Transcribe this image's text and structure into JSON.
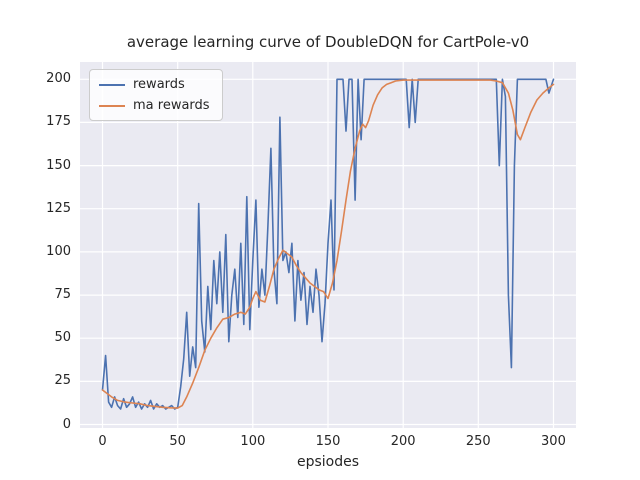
{
  "chart_data": {
    "type": "line",
    "title": "average learning curve of DoubleDQN for CartPole-v0",
    "xlabel": "epsiodes",
    "ylabel": "",
    "xlim": [
      -15,
      315
    ],
    "ylim": [
      -2,
      210
    ],
    "xticks": [
      0,
      50,
      100,
      150,
      200,
      250,
      300
    ],
    "yticks": [
      0,
      25,
      50,
      75,
      100,
      125,
      150,
      175,
      200
    ],
    "grid": true,
    "legend_position": "upper-left",
    "colors": {
      "plot_background": "#eaeaf2",
      "grid": "#ffffff",
      "text": "#262626",
      "rewards_line": "#4c72b0",
      "ma_rewards_line": "#dd8452"
    },
    "series": [
      {
        "name": "rewards",
        "color": "#4c72b0",
        "points": [
          [
            0,
            20
          ],
          [
            2,
            40
          ],
          [
            4,
            13
          ],
          [
            6,
            10
          ],
          [
            8,
            16
          ],
          [
            10,
            11
          ],
          [
            12,
            9
          ],
          [
            14,
            15
          ],
          [
            16,
            10
          ],
          [
            18,
            12
          ],
          [
            20,
            16
          ],
          [
            22,
            10
          ],
          [
            24,
            13
          ],
          [
            26,
            9
          ],
          [
            28,
            12
          ],
          [
            30,
            10
          ],
          [
            32,
            14
          ],
          [
            34,
            9
          ],
          [
            36,
            12
          ],
          [
            38,
            10
          ],
          [
            40,
            11
          ],
          [
            42,
            9
          ],
          [
            44,
            10
          ],
          [
            46,
            11
          ],
          [
            48,
            9
          ],
          [
            50,
            10
          ],
          [
            52,
            22
          ],
          [
            54,
            38
          ],
          [
            56,
            65
          ],
          [
            58,
            28
          ],
          [
            60,
            45
          ],
          [
            62,
            33
          ],
          [
            64,
            128
          ],
          [
            66,
            60
          ],
          [
            68,
            42
          ],
          [
            70,
            80
          ],
          [
            72,
            55
          ],
          [
            74,
            95
          ],
          [
            76,
            70
          ],
          [
            78,
            100
          ],
          [
            80,
            65
          ],
          [
            82,
            110
          ],
          [
            84,
            48
          ],
          [
            86,
            75
          ],
          [
            88,
            90
          ],
          [
            90,
            62
          ],
          [
            92,
            105
          ],
          [
            94,
            58
          ],
          [
            96,
            132
          ],
          [
            98,
            55
          ],
          [
            100,
            95
          ],
          [
            102,
            130
          ],
          [
            104,
            68
          ],
          [
            106,
            90
          ],
          [
            108,
            75
          ],
          [
            110,
            115
          ],
          [
            112,
            160
          ],
          [
            114,
            90
          ],
          [
            116,
            70
          ],
          [
            118,
            178
          ],
          [
            120,
            95
          ],
          [
            122,
            100
          ],
          [
            124,
            88
          ],
          [
            126,
            105
          ],
          [
            128,
            60
          ],
          [
            130,
            95
          ],
          [
            132,
            72
          ],
          [
            134,
            88
          ],
          [
            136,
            58
          ],
          [
            138,
            80
          ],
          [
            140,
            65
          ],
          [
            142,
            90
          ],
          [
            144,
            75
          ],
          [
            146,
            48
          ],
          [
            148,
            70
          ],
          [
            150,
            105
          ],
          [
            152,
            130
          ],
          [
            154,
            78
          ],
          [
            156,
            200
          ],
          [
            158,
            200
          ],
          [
            160,
            200
          ],
          [
            162,
            170
          ],
          [
            164,
            200
          ],
          [
            166,
            200
          ],
          [
            168,
            130
          ],
          [
            170,
            200
          ],
          [
            172,
            165
          ],
          [
            174,
            200
          ],
          [
            176,
            200
          ],
          [
            178,
            200
          ],
          [
            180,
            200
          ],
          [
            182,
            200
          ],
          [
            184,
            200
          ],
          [
            186,
            200
          ],
          [
            188,
            200
          ],
          [
            190,
            200
          ],
          [
            192,
            200
          ],
          [
            194,
            200
          ],
          [
            196,
            200
          ],
          [
            198,
            200
          ],
          [
            200,
            200
          ],
          [
            202,
            200
          ],
          [
            204,
            172
          ],
          [
            206,
            200
          ],
          [
            208,
            175
          ],
          [
            210,
            200
          ],
          [
            215,
            200
          ],
          [
            220,
            200
          ],
          [
            225,
            200
          ],
          [
            230,
            200
          ],
          [
            235,
            200
          ],
          [
            240,
            200
          ],
          [
            245,
            200
          ],
          [
            250,
            200
          ],
          [
            255,
            200
          ],
          [
            258,
            200
          ],
          [
            260,
            200
          ],
          [
            262,
            200
          ],
          [
            264,
            150
          ],
          [
            266,
            200
          ],
          [
            268,
            190
          ],
          [
            270,
            75
          ],
          [
            272,
            33
          ],
          [
            274,
            150
          ],
          [
            276,
            200
          ],
          [
            278,
            200
          ],
          [
            280,
            200
          ],
          [
            285,
            200
          ],
          [
            290,
            200
          ],
          [
            295,
            200
          ],
          [
            297,
            192
          ],
          [
            300,
            200
          ]
        ]
      },
      {
        "name": "ma rewards",
        "color": "#dd8452",
        "points": [
          [
            0,
            20
          ],
          [
            3,
            18
          ],
          [
            6,
            16
          ],
          [
            10,
            14
          ],
          [
            15,
            13
          ],
          [
            20,
            12.5
          ],
          [
            25,
            12
          ],
          [
            30,
            11
          ],
          [
            35,
            10.5
          ],
          [
            40,
            10
          ],
          [
            45,
            9.7
          ],
          [
            50,
            9.5
          ],
          [
            53,
            11
          ],
          [
            56,
            16
          ],
          [
            60,
            24
          ],
          [
            64,
            33
          ],
          [
            68,
            43
          ],
          [
            72,
            50
          ],
          [
            76,
            56
          ],
          [
            80,
            61
          ],
          [
            84,
            62
          ],
          [
            88,
            64
          ],
          [
            92,
            65
          ],
          [
            95,
            64
          ],
          [
            98,
            68
          ],
          [
            100,
            73
          ],
          [
            102,
            77
          ],
          [
            105,
            72
          ],
          [
            108,
            71
          ],
          [
            111,
            80
          ],
          [
            114,
            90
          ],
          [
            117,
            96
          ],
          [
            120,
            101
          ],
          [
            123,
            99
          ],
          [
            126,
            97
          ],
          [
            129,
            92
          ],
          [
            132,
            88
          ],
          [
            135,
            85
          ],
          [
            138,
            82
          ],
          [
            141,
            80
          ],
          [
            144,
            78
          ],
          [
            147,
            77
          ],
          [
            150,
            73
          ],
          [
            153,
            82
          ],
          [
            156,
            95
          ],
          [
            159,
            112
          ],
          [
            162,
            130
          ],
          [
            165,
            147
          ],
          [
            168,
            160
          ],
          [
            171,
            170
          ],
          [
            173,
            174
          ],
          [
            175,
            172
          ],
          [
            177,
            176
          ],
          [
            180,
            185
          ],
          [
            183,
            191
          ],
          [
            186,
            195
          ],
          [
            189,
            197
          ],
          [
            192,
            198
          ],
          [
            195,
            199
          ],
          [
            200,
            199.5
          ],
          [
            210,
            199.5
          ],
          [
            220,
            199.5
          ],
          [
            230,
            199.5
          ],
          [
            240,
            199.5
          ],
          [
            250,
            199.5
          ],
          [
            258,
            199.5
          ],
          [
            262,
            199
          ],
          [
            266,
            198
          ],
          [
            270,
            192
          ],
          [
            273,
            182
          ],
          [
            276,
            168
          ],
          [
            278,
            165
          ],
          [
            281,
            172
          ],
          [
            285,
            181
          ],
          [
            289,
            188
          ],
          [
            293,
            192
          ],
          [
            297,
            195
          ],
          [
            300,
            197
          ]
        ]
      }
    ]
  }
}
